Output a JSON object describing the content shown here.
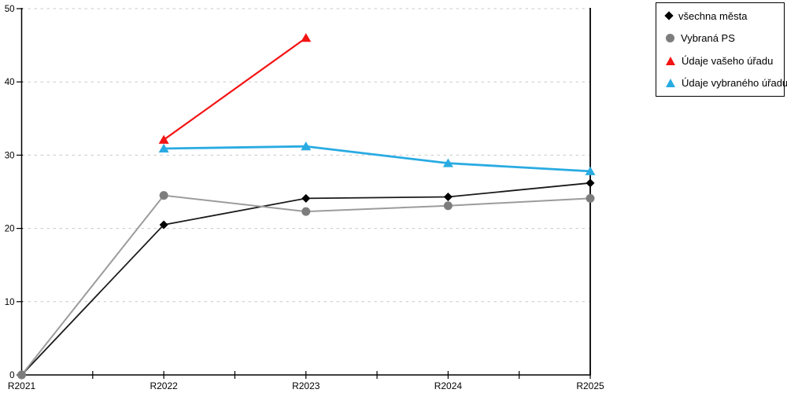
{
  "chart_data": {
    "type": "line",
    "title": "",
    "xlabel": "",
    "ylabel": "",
    "x": [
      "R2021",
      "R2022",
      "R2023",
      "R2024",
      "R2025"
    ],
    "ylim": [
      0,
      50
    ],
    "yticks": [
      0,
      10,
      20,
      30,
      40,
      50
    ],
    "grid": "horizontal dashed",
    "legend_position": "top-right",
    "series": [
      {
        "name": "všechna města",
        "marker": "diamond",
        "color": "#1a1a1a",
        "marker_color": "#000000",
        "values": [
          0,
          20.5,
          24.1,
          24.3,
          26.2
        ]
      },
      {
        "name": "Vybraná PS",
        "marker": "circle",
        "color": "#9c9c9c",
        "marker_color": "#7d7d7d",
        "values": [
          0,
          24.5,
          22.3,
          23.1,
          24.1
        ]
      },
      {
        "name": "Údaje vašeho úřadu",
        "marker": "triangle",
        "color": "#f31414",
        "marker_color": "#f31414",
        "values": [
          null,
          32.1,
          46,
          null,
          null
        ]
      },
      {
        "name": "Údaje vybraného úřadu",
        "marker": "triangle",
        "color": "#29abe2",
        "marker_color": "#29abe2",
        "values": [
          null,
          30.9,
          31.2,
          28.9,
          27.8
        ]
      }
    ]
  }
}
